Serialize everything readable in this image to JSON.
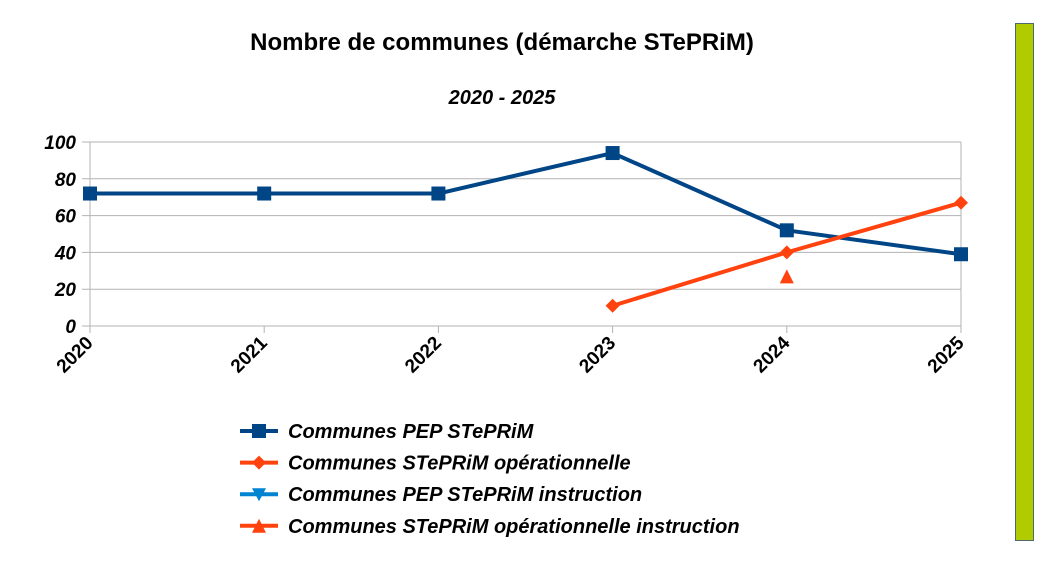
{
  "chart_data": {
    "type": "line",
    "title": "Nombre de communes (démarche STePRiM)",
    "subtitle": "2020 - 2025",
    "xlabel": "",
    "ylabel": "",
    "categories": [
      "2020",
      "2021",
      "2022",
      "2023",
      "2024",
      "2025"
    ],
    "ylim": [
      0,
      100
    ],
    "yticks": [
      0,
      20,
      40,
      60,
      80,
      100
    ],
    "grid": true,
    "legend_position": "bottom",
    "series": [
      {
        "name": "Communes PEP STePRiM",
        "color": "#004586",
        "marker": "square",
        "values": [
          72,
          72,
          72,
          94,
          52,
          39
        ]
      },
      {
        "name": "Communes STePRiM opérationnelle",
        "color": "#ff420e",
        "marker": "diamond",
        "values": [
          null,
          null,
          null,
          11,
          40,
          67
        ]
      },
      {
        "name": "Communes PEP STePRiM instruction",
        "color": "#0084d1",
        "marker": "triangle-down",
        "values": [
          null,
          null,
          null,
          null,
          null,
          null
        ]
      },
      {
        "name": "Communes STePRiM opérationnelle instruction",
        "color": "#ff420e",
        "marker": "triangle-up",
        "values": [
          null,
          null,
          null,
          null,
          27,
          null
        ]
      }
    ]
  },
  "side_bar": {
    "color": "#b0cc00"
  }
}
